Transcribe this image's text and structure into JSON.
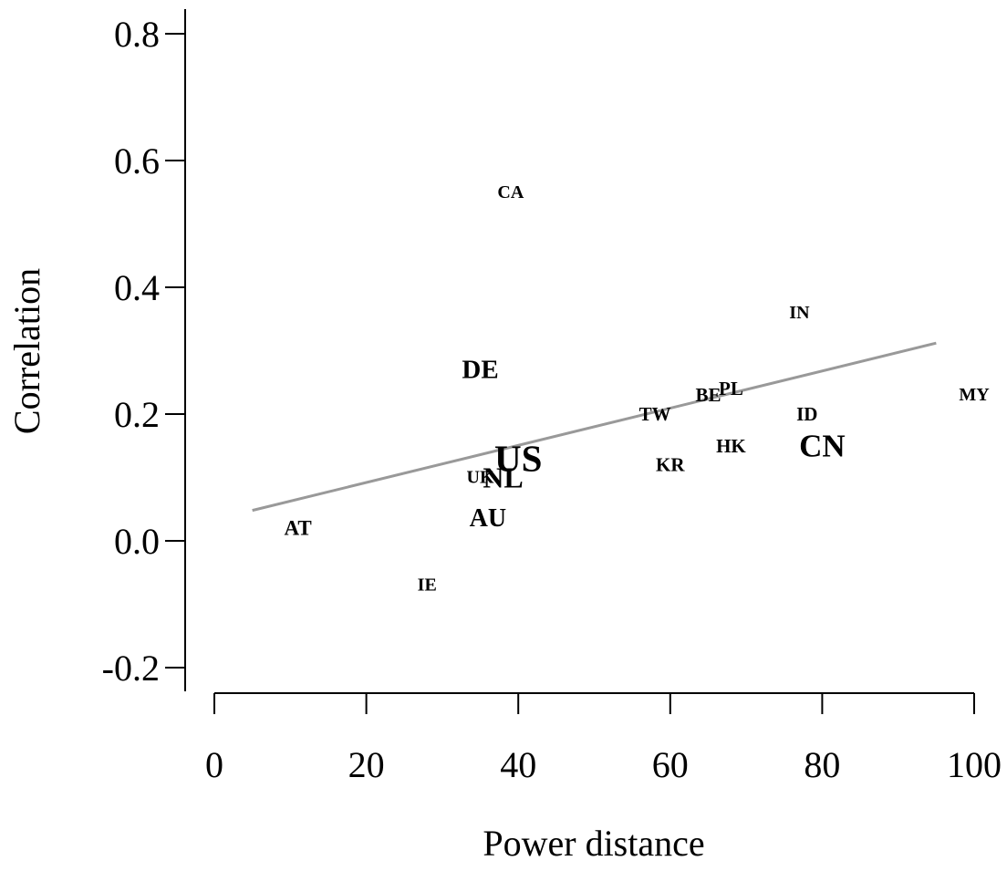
{
  "chart_data": {
    "type": "scatter",
    "title": "",
    "xlabel": "Power distance",
    "ylabel": "Correlation",
    "xlim": [
      0,
      100
    ],
    "ylim": [
      -0.2,
      0.8
    ],
    "xticks": [
      0,
      20,
      40,
      60,
      80,
      100
    ],
    "yticks": [
      -0.2,
      0.0,
      0.2,
      0.4,
      0.6,
      0.8
    ],
    "xtick_labels": [
      "0",
      "20",
      "40",
      "60",
      "80",
      "100"
    ],
    "ytick_labels": [
      "-0.2",
      "0.0",
      "0.2",
      "0.4",
      "0.6",
      "0.8"
    ],
    "grid": false,
    "legend": "none",
    "label_color": "#000000",
    "trend_color": "#999999",
    "points": [
      {
        "label": "CA",
        "x": 39,
        "y": 0.55,
        "size": 1.0
      },
      {
        "label": "IN",
        "x": 77,
        "y": 0.36,
        "size": 1.0
      },
      {
        "label": "DE",
        "x": 35,
        "y": 0.27,
        "size": 1.45
      },
      {
        "label": "PL",
        "x": 68,
        "y": 0.24,
        "size": 1.05
      },
      {
        "label": "BE",
        "x": 65,
        "y": 0.23,
        "size": 1.05
      },
      {
        "label": "MY",
        "x": 100,
        "y": 0.23,
        "size": 1.0
      },
      {
        "label": "TW",
        "x": 58,
        "y": 0.2,
        "size": 1.05
      },
      {
        "label": "ID",
        "x": 78,
        "y": 0.2,
        "size": 1.05
      },
      {
        "label": "HK",
        "x": 68,
        "y": 0.15,
        "size": 1.05
      },
      {
        "label": "CN",
        "x": 80,
        "y": 0.15,
        "size": 1.75
      },
      {
        "label": "US",
        "x": 40,
        "y": 0.13,
        "size": 2.05
      },
      {
        "label": "KR",
        "x": 60,
        "y": 0.12,
        "size": 1.05
      },
      {
        "label": "UK",
        "x": 35,
        "y": 0.1,
        "size": 1.0
      },
      {
        "label": "NL",
        "x": 38,
        "y": 0.1,
        "size": 1.6
      },
      {
        "label": "AU",
        "x": 36,
        "y": 0.035,
        "size": 1.4
      },
      {
        "label": "AT",
        "x": 11,
        "y": 0.02,
        "size": 1.15
      },
      {
        "label": "IE",
        "x": 28,
        "y": -0.07,
        "size": 1.0
      }
    ],
    "trend_line": {
      "x": [
        5,
        95
      ],
      "y": [
        0.048,
        0.312
      ]
    }
  }
}
